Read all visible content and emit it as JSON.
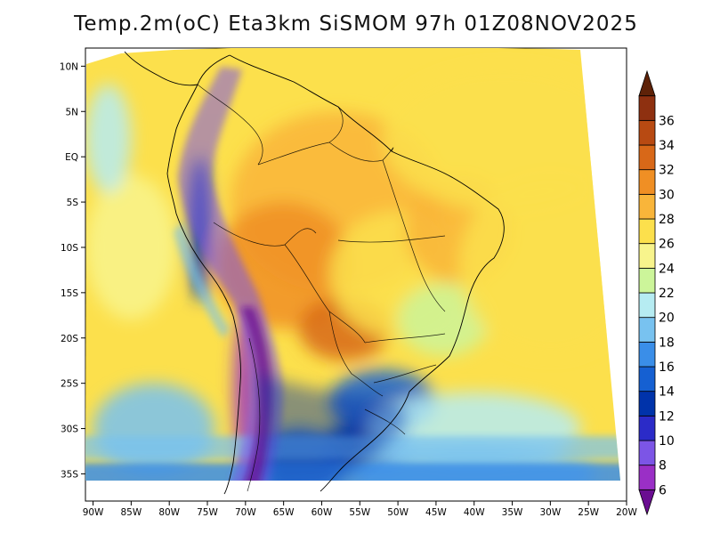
{
  "title": "Temp.2m(oC) Eta3km SiSMOM 97h 01Z08NOV2025",
  "map": {
    "lon_min": -91,
    "lon_max": -20,
    "lat_min": -38,
    "lat_max": 12,
    "x_ticks": [
      {
        "value": -90,
        "label": "90W"
      },
      {
        "value": -85,
        "label": "85W"
      },
      {
        "value": -80,
        "label": "80W"
      },
      {
        "value": -75,
        "label": "75W"
      },
      {
        "value": -70,
        "label": "70W"
      },
      {
        "value": -65,
        "label": "65W"
      },
      {
        "value": -60,
        "label": "60W"
      },
      {
        "value": -55,
        "label": "55W"
      },
      {
        "value": -50,
        "label": "50W"
      },
      {
        "value": -45,
        "label": "45W"
      },
      {
        "value": -40,
        "label": "40W"
      },
      {
        "value": -35,
        "label": "35W"
      },
      {
        "value": -30,
        "label": "30W"
      },
      {
        "value": -25,
        "label": "25W"
      },
      {
        "value": -20,
        "label": "20W"
      }
    ],
    "y_ticks": [
      {
        "value": 10,
        "label": "10N"
      },
      {
        "value": 5,
        "label": "5N"
      },
      {
        "value": 0,
        "label": "EQ"
      },
      {
        "value": -5,
        "label": "5S"
      },
      {
        "value": -10,
        "label": "10S"
      },
      {
        "value": -15,
        "label": "15S"
      },
      {
        "value": -20,
        "label": "20S"
      },
      {
        "value": -25,
        "label": "25S"
      },
      {
        "value": -30,
        "label": "30S"
      },
      {
        "value": -35,
        "label": "35S"
      }
    ]
  },
  "colorbar": {
    "levels": [
      "6",
      "8",
      "10",
      "12",
      "14",
      "16",
      "18",
      "20",
      "22",
      "24",
      "26",
      "28",
      "30",
      "32",
      "34",
      "36"
    ],
    "colors": [
      "#6a0d91",
      "#9a2fc6",
      "#7c55e6",
      "#2b2bc8",
      "#0033aa",
      "#1560d2",
      "#3a8ee8",
      "#78c2f0",
      "#b6ecf2",
      "#ccf59a",
      "#f8f48c",
      "#fce04c",
      "#f9b53a",
      "#f08f24",
      "#d86818",
      "#b84a12",
      "#8e3010",
      "#5e2208"
    ]
  },
  "chart_data": {
    "type": "heatmap",
    "title": "Temp.2m(oC) Eta3km SiSMOM 97h 01Z08NOV2025",
    "variable": "2 m air temperature",
    "units": "oC",
    "model": "Eta3km SiSMOM",
    "forecast_hour": "97h",
    "valid_time": "01Z08NOV2025",
    "xlim": [
      -91,
      -20
    ],
    "ylim": [
      -38,
      12
    ],
    "color_levels": [
      6,
      8,
      10,
      12,
      14,
      16,
      18,
      20,
      22,
      24,
      26,
      28,
      30,
      32,
      34,
      36
    ],
    "zones": [
      {
        "lon": -58,
        "lat": -5,
        "rx": 14,
        "ry": 10,
        "temp": 29
      },
      {
        "lon": -65,
        "lat": -12,
        "rx": 9,
        "ry": 7,
        "temp": 30
      },
      {
        "lon": -57,
        "lat": -19,
        "rx": 6,
        "ry": 3.5,
        "temp": 32
      },
      {
        "lon": -50,
        "lat": -13,
        "rx": 9,
        "ry": 7,
        "temp": 27
      },
      {
        "lon": -42,
        "lat": -8,
        "rx": 7,
        "ry": 6,
        "temp": 28
      },
      {
        "lon": -44,
        "lat": -18,
        "rx": 6,
        "ry": 4,
        "temp": 22
      },
      {
        "lon": -52,
        "lat": -27,
        "rx": 7,
        "ry": 3.5,
        "temp": 15
      },
      {
        "lon": -54,
        "lat": -32,
        "rx": 6,
        "ry": 3,
        "temp": 13
      },
      {
        "lon": -63,
        "lat": -34,
        "rx": 6,
        "ry": 4,
        "temp": 14
      },
      {
        "lon": -70,
        "lat": -26,
        "rx": 1.5,
        "ry": 9,
        "temp": 7
      },
      {
        "lon": -76,
        "lat": -8,
        "rx": 1.5,
        "ry": 8,
        "temp": 12
      },
      {
        "lon": -36,
        "lat": 2,
        "rx": 16,
        "ry": 8,
        "temp": 26
      },
      {
        "lon": -30,
        "lat": -12,
        "rx": 12,
        "ry": 10,
        "temp": 27
      },
      {
        "lon": -85,
        "lat": -10,
        "rx": 6,
        "ry": 8,
        "temp": 25
      },
      {
        "lon": -82,
        "lat": -30,
        "rx": 8,
        "ry": 5,
        "temp": 19
      },
      {
        "lon": -40,
        "lat": -30,
        "rx": 14,
        "ry": 4,
        "temp": 21
      },
      {
        "lon": -40,
        "lat": -35,
        "rx": 16,
        "ry": 3,
        "temp": 18
      },
      {
        "lon": -88,
        "lat": 2,
        "rx": 3,
        "ry": 6,
        "temp": 21
      }
    ]
  }
}
